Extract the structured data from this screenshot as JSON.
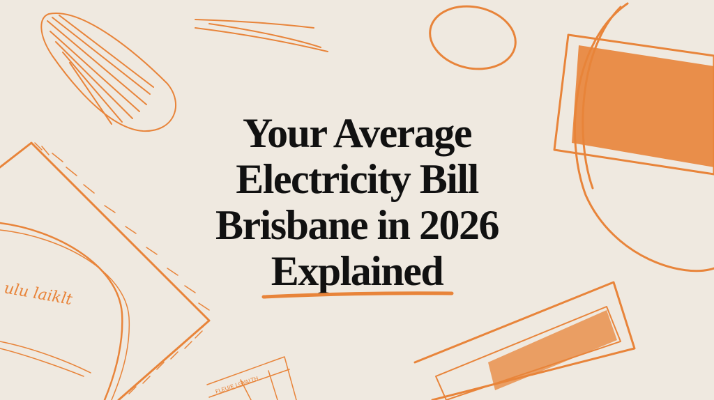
{
  "hero": {
    "title_lines": [
      "Your Average",
      "Electricity Bill",
      "Brisbane in 2026",
      "Explained"
    ]
  },
  "colors": {
    "background": "#efe9e0",
    "accent": "#e8843a",
    "text": "#111111"
  },
  "decorations": {
    "handwritten_scribbles": [
      "ulu laiklt",
      "FLEUIE LGYALTH"
    ]
  }
}
